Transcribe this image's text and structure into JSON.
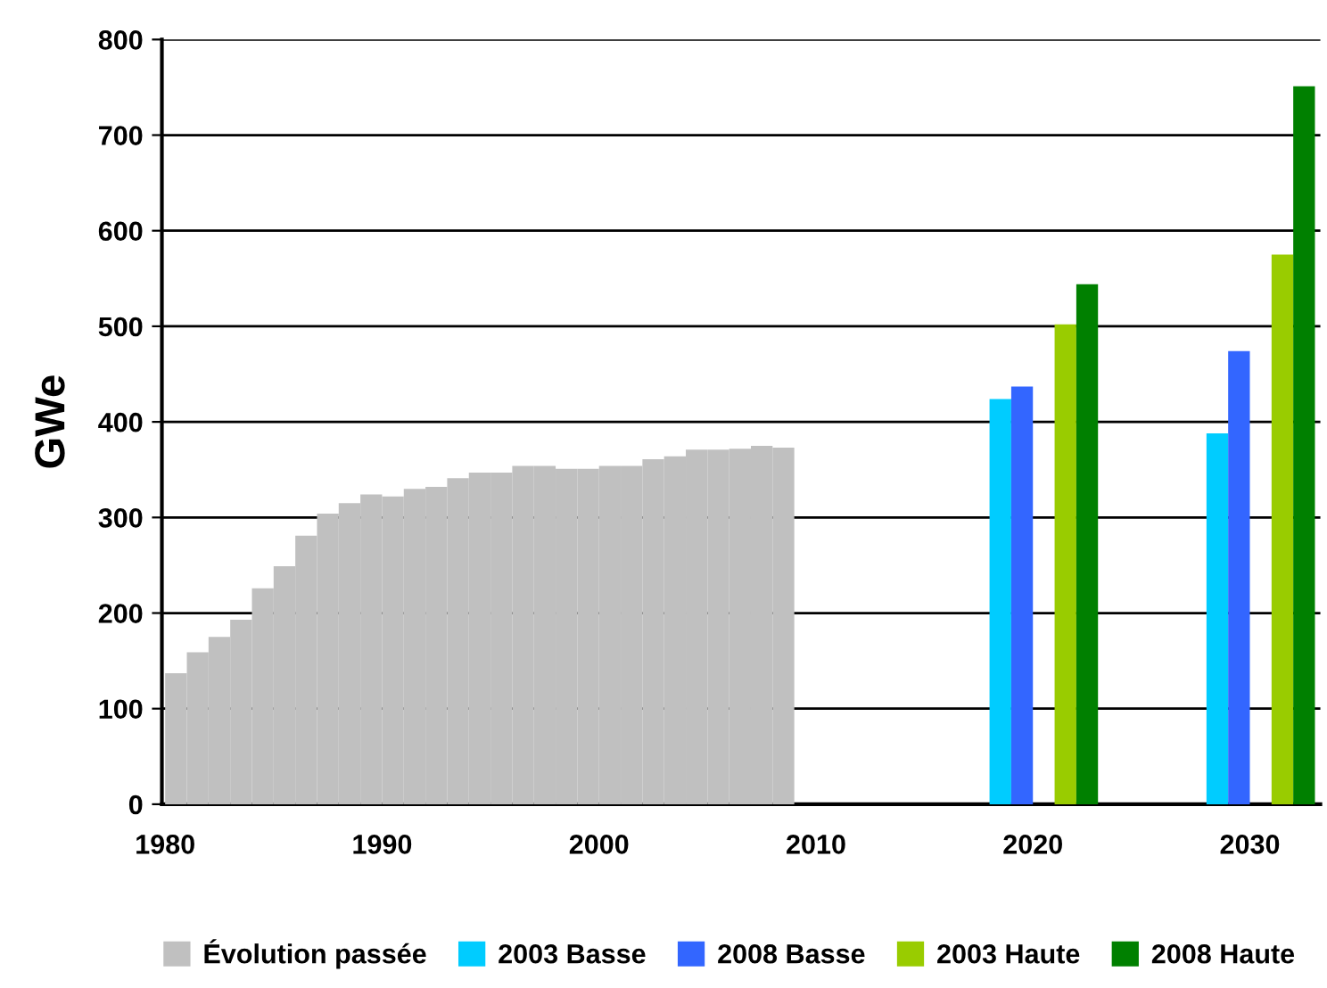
{
  "chart_data": {
    "type": "bar",
    "ylabel": "GWe",
    "xlim": [
      1979.85,
      2033.25
    ],
    "xticks": [
      1980,
      1990,
      2000,
      2010,
      2020,
      2030
    ],
    "ylim": [
      0,
      800
    ],
    "yticks": [
      0,
      100,
      200,
      300,
      400,
      500,
      600,
      700,
      800
    ],
    "grid": "y",
    "legend": "bottom",
    "series": [
      {
        "name": "Évolution passée",
        "color": "#c0c0c0",
        "x": [
          1980,
          1981,
          1982,
          1983,
          1984,
          1985,
          1986,
          1987,
          1988,
          1989,
          1990,
          1991,
          1992,
          1993,
          1994,
          1995,
          1996,
          1997,
          1998,
          1999,
          2000,
          2001,
          2002,
          2003,
          2004,
          2005,
          2006,
          2007,
          2008
        ],
        "values": [
          137,
          159,
          175,
          193,
          226,
          249,
          281,
          304,
          315,
          324,
          322,
          330,
          332,
          341,
          347,
          347,
          354,
          354,
          351,
          351,
          354,
          354,
          361,
          364,
          371,
          371,
          372,
          375,
          373
        ]
      },
      {
        "name": "2003 Basse",
        "color": "#00ccff",
        "x": [
          2020,
          2030
        ],
        "values": [
          424,
          388
        ]
      },
      {
        "name": "2008 Basse",
        "color": "#3366ff",
        "x": [
          2020,
          2030
        ],
        "values": [
          437,
          474
        ]
      },
      {
        "name": "2003 Haute",
        "color": "#99cc00",
        "x": [
          2020,
          2030
        ],
        "values": [
          502,
          575
        ]
      },
      {
        "name": "2008 Haute",
        "color": "#008000",
        "x": [
          2020,
          2030
        ],
        "values": [
          544,
          751
        ]
      }
    ]
  }
}
